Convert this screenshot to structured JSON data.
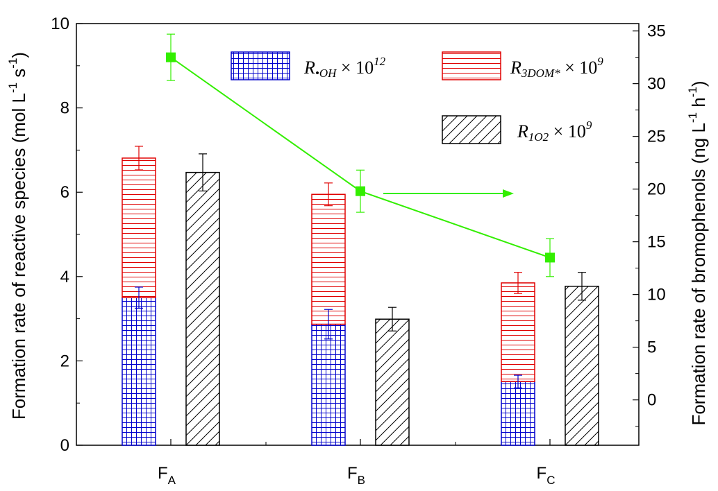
{
  "chart_data": {
    "type": "bar",
    "categories": [
      "F",
      "F",
      "F"
    ],
    "category_subscripts": [
      "A",
      "B",
      "C"
    ],
    "left_axis": {
      "label": "Formation rate of reactive species (mol L",
      "label_parts": [
        {
          "text": "Formation rate of reactive species (mol L",
          "sup": false
        },
        {
          "text": "-1",
          "sup": true
        },
        {
          "text": " s",
          "sup": false
        },
        {
          "text": "-1",
          "sup": true
        },
        {
          "text": ")",
          "sup": false
        }
      ],
      "ylim": [
        0,
        10
      ],
      "ticks": [
        0,
        2,
        4,
        6,
        8,
        10
      ],
      "tick_labels": [
        "0",
        "2",
        "4",
        "6",
        "8",
        "10"
      ]
    },
    "right_axis": {
      "label_parts": [
        {
          "text": "Formation rate of bromophenols (ng L",
          "sup": false
        },
        {
          "text": "-1",
          "sup": true
        },
        {
          "text": " h",
          "sup": false
        },
        {
          "text": "-1",
          "sup": true
        },
        {
          "text": ")",
          "sup": false
        }
      ],
      "ylim": [
        -4.3,
        35.7
      ],
      "ticks": [
        0,
        5,
        10,
        15,
        20,
        25,
        30,
        35
      ],
      "tick_labels": [
        "0",
        "5",
        "10",
        "15",
        "20",
        "25",
        "30",
        "35"
      ]
    },
    "series": [
      {
        "name": "R•OH × 10^12",
        "kind": "stacked-bottom",
        "color": "#0000cc",
        "pattern": "grid",
        "values": [
          3.5,
          2.87,
          1.51
        ],
        "errors": [
          0.25,
          0.35,
          0.15
        ]
      },
      {
        "name": "R3DOM* × 10^9",
        "kind": "stacked-top",
        "color": "#e00000",
        "pattern": "hlines",
        "values": [
          3.31,
          3.08,
          2.34
        ],
        "totals": [
          6.81,
          5.95,
          3.85
        ],
        "errors": [
          0.28,
          0.27,
          0.25
        ]
      },
      {
        "name": "R1O2 × 10^9",
        "kind": "bar",
        "color": "#000000",
        "pattern": "diag",
        "values": [
          6.47,
          2.99,
          3.77
        ],
        "errors": [
          0.44,
          0.28,
          0.33
        ]
      },
      {
        "name": "Bromophenols",
        "kind": "line",
        "axis": "right",
        "color": "#33ee00",
        "values": [
          32.5,
          19.8,
          13.5
        ],
        "errors": [
          2.2,
          2.0,
          1.8
        ]
      }
    ],
    "legend": [
      {
        "name": "oh",
        "parts": [
          {
            "t": "R",
            "sub": false
          },
          {
            "t": "•OH",
            "sub": true
          },
          {
            "t": " × 10",
            "sub": false
          },
          {
            "t": "12",
            "sup": true
          }
        ]
      },
      {
        "name": "dom",
        "parts": [
          {
            "t": "R",
            "sub": false
          },
          {
            "t": "3DOM*",
            "sub": true
          },
          {
            "t": " × 10",
            "sub": false
          },
          {
            "t": "9",
            "sup": true
          }
        ]
      },
      {
        "name": "o2",
        "parts": [
          {
            "t": "R",
            "sub": false
          },
          {
            "t": "1O2",
            "sub": true
          },
          {
            "t": " × 10",
            "sub": false
          },
          {
            "t": "9",
            "sup": true
          }
        ]
      }
    ],
    "legend_placement": "top-right"
  }
}
